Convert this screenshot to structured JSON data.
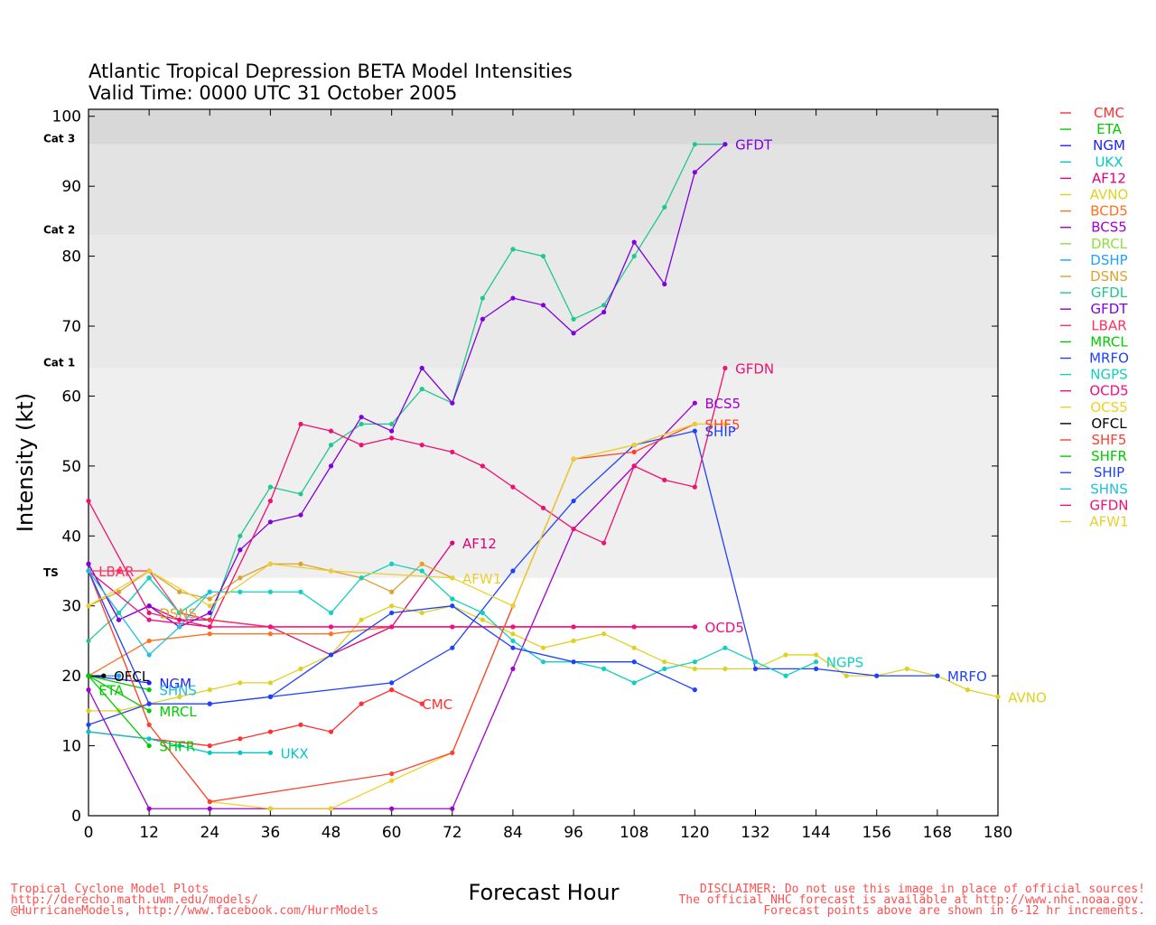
{
  "chart_data": {
    "type": "line",
    "title_line1": "Atlantic Tropical Depression BETA Model Intensities",
    "title_line2": "Valid Time: 0000 UTC 31 October 2005",
    "xlabel": "Forecast Hour",
    "ylabel": "Intensity (kt)",
    "xlim": [
      0,
      180
    ],
    "ylim": [
      0,
      101
    ],
    "xticks": [
      0,
      12,
      24,
      36,
      48,
      60,
      72,
      84,
      96,
      108,
      120,
      132,
      144,
      156,
      168,
      180
    ],
    "yticks": [
      0,
      10,
      20,
      30,
      40,
      50,
      60,
      70,
      80,
      90,
      100
    ],
    "categories_bands": [
      {
        "label": "TS",
        "from": 34,
        "to": 64,
        "color": "#efefef"
      },
      {
        "label": "Cat 1",
        "from": 64,
        "to": 83,
        "color": "#e9e9e9"
      },
      {
        "label": "Cat 2",
        "from": 83,
        "to": 96,
        "color": "#e3e3e3"
      },
      {
        "label": "Cat 3",
        "from": 96,
        "to": 101,
        "color": "#d8d8d8"
      }
    ],
    "series": [
      {
        "name": "CMC",
        "color": "#ff3030",
        "label": "CMC",
        "x": [
          0,
          24,
          30,
          36,
          42,
          48,
          54,
          60,
          66
        ],
        "y": [
          12,
          10,
          11,
          12,
          13,
          12,
          16,
          18,
          16
        ]
      },
      {
        "name": "ETA",
        "color": "#00cc00",
        "label": "ETA",
        "x": [
          0,
          12
        ],
        "y": [
          20,
          18
        ]
      },
      {
        "name": "NGM",
        "color": "#2020ff",
        "label": "NGM",
        "x": [
          0,
          12
        ],
        "y": [
          20,
          19
        ]
      },
      {
        "name": "UKX",
        "color": "#00c8c8",
        "label": "UKX",
        "x": [
          0,
          12,
          18,
          24,
          30,
          36
        ],
        "y": [
          12,
          11,
          10,
          9,
          9,
          9
        ]
      },
      {
        "name": "AF12",
        "color": "#e0007a",
        "label": "AF12",
        "x": [
          0,
          6,
          12,
          18,
          24,
          36,
          48,
          60,
          72
        ],
        "y": [
          36,
          28,
          30,
          28,
          28,
          27,
          23,
          27,
          39
        ]
      },
      {
        "name": "AVNO",
        "color": "#e0d020",
        "label": "AVNO",
        "x": [
          0,
          6,
          12,
          18,
          24,
          30,
          36,
          42,
          48,
          54,
          60,
          66,
          72,
          78,
          84,
          90,
          96,
          102,
          108,
          114,
          120,
          126,
          132,
          138,
          144,
          150,
          156,
          162,
          168,
          174,
          180
        ],
        "y": [
          15,
          15,
          16,
          17,
          18,
          19,
          19,
          21,
          23,
          28,
          30,
          29,
          30,
          28,
          26,
          24,
          25,
          26,
          24,
          22,
          21,
          21,
          21,
          23,
          23,
          20,
          20,
          21,
          20,
          18,
          17
        ]
      },
      {
        "name": "BCD5",
        "color": "#ff7020",
        "label": "",
        "x": [
          0,
          12,
          24,
          36,
          48,
          60,
          72,
          84,
          96,
          108,
          120
        ],
        "y": [
          20,
          25,
          26,
          26,
          26,
          27,
          27,
          27,
          27,
          27,
          27
        ]
      },
      {
        "name": "BCS5",
        "color": "#a000d0",
        "label": "BCS5",
        "x": [
          0,
          12,
          24,
          36,
          48,
          60,
          72,
          84,
          96,
          108,
          120
        ],
        "y": [
          18,
          1,
          1,
          1,
          1,
          1,
          1,
          21,
          41,
          50,
          59
        ]
      },
      {
        "name": "DRCL",
        "color": "#90e040",
        "label": "",
        "x": [
          0,
          6
        ],
        "y": [
          20,
          20
        ]
      },
      {
        "name": "DSHP",
        "color": "#20a0ff",
        "label": "",
        "x": [
          0,
          6
        ],
        "y": [
          20,
          20
        ]
      },
      {
        "name": "DSNS",
        "color": "#e0a030",
        "label": "DSNS",
        "x": [
          0,
          6,
          12,
          18,
          24,
          30,
          36,
          42,
          48,
          54,
          60,
          66,
          72
        ],
        "y": [
          30,
          32,
          35,
          32,
          31,
          34,
          36,
          36,
          35,
          34,
          32,
          36,
          34
        ]
      },
      {
        "name": "GFDL",
        "color": "#20c890",
        "label": "",
        "x": [
          0,
          6,
          12,
          18,
          24,
          30,
          36,
          42,
          48,
          54,
          60,
          66,
          72,
          78,
          84,
          90,
          96,
          102,
          108,
          114,
          120,
          126
        ],
        "y": [
          25,
          29,
          34,
          29,
          28,
          40,
          47,
          46,
          53,
          56,
          56,
          61,
          59,
          74,
          81,
          80,
          71,
          73,
          80,
          87,
          96,
          96
        ]
      },
      {
        "name": "GFDT",
        "color": "#8000e0",
        "label": "GFDT",
        "x": [
          0,
          6,
          12,
          18,
          24,
          30,
          36,
          42,
          48,
          54,
          60,
          66,
          72,
          78,
          84,
          90,
          96,
          102,
          108,
          114,
          120,
          126
        ],
        "y": [
          36,
          28,
          30,
          27,
          29,
          38,
          42,
          43,
          50,
          57,
          55,
          64,
          59,
          71,
          74,
          73,
          69,
          72,
          82,
          76,
          92,
          96
        ]
      },
      {
        "name": "LBAR",
        "color": "#ff3060",
        "label": "LBAR",
        "x": [
          0,
          6,
          12,
          18,
          24,
          36,
          48,
          60,
          72,
          84,
          96,
          108,
          120
        ],
        "y": [
          35,
          35,
          35,
          29,
          28,
          27,
          27,
          27,
          27,
          27,
          27,
          27,
          27
        ]
      },
      {
        "name": "MRCL",
        "color": "#00cc00",
        "label": "MRCL",
        "x": [
          0,
          12
        ],
        "y": [
          20,
          15
        ]
      },
      {
        "name": "MRFO",
        "color": "#2040ff",
        "label": "MRFO",
        "x": [
          0,
          12,
          24,
          36,
          60,
          72,
          84,
          96,
          108,
          120,
          132,
          144,
          156,
          168
        ],
        "y": [
          13,
          16,
          16,
          17,
          19,
          24,
          35,
          45,
          53,
          55,
          21,
          21,
          20,
          20
        ]
      },
      {
        "name": "NGPS",
        "color": "#10d0c0",
        "label": "NGPS",
        "x": [
          0,
          6,
          12,
          18,
          24,
          30,
          36,
          42,
          48,
          54,
          60,
          66,
          72,
          78,
          84,
          90,
          96,
          102,
          108,
          114,
          120,
          126,
          132,
          138,
          144
        ],
        "y": [
          35,
          29,
          34,
          29,
          32,
          32,
          32,
          32,
          29,
          34,
          36,
          35,
          31,
          29,
          25,
          22,
          22,
          21,
          19,
          21,
          22,
          24,
          22,
          20,
          22
        ]
      },
      {
        "name": "OCD5",
        "color": "#f01080",
        "label": "OCD5",
        "x": [
          0,
          12,
          24,
          36,
          48,
          60,
          72,
          84,
          96,
          108,
          120
        ],
        "y": [
          35,
          28,
          27,
          27,
          27,
          27,
          27,
          27,
          27,
          27,
          27
        ]
      },
      {
        "name": "OCS5",
        "color": "#f0d020",
        "label": "",
        "x": [
          0,
          12,
          24,
          36,
          48,
          60,
          72,
          84,
          96,
          108,
          120
        ],
        "y": [
          35,
          13,
          2,
          1,
          1,
          5,
          9,
          30,
          51,
          53,
          56
        ]
      },
      {
        "name": "OFCL",
        "color": "#000000",
        "label": "OFCL",
        "x": [
          0,
          3
        ],
        "y": [
          20,
          20
        ]
      },
      {
        "name": "SHF5",
        "color": "#ff4030",
        "label": "SHF5",
        "x": [
          0,
          12,
          24,
          60,
          72,
          84,
          96,
          108,
          120
        ],
        "y": [
          35,
          13,
          2,
          6,
          9,
          30,
          51,
          52,
          56
        ]
      },
      {
        "name": "SHFR",
        "color": "#00cc00",
        "label": "SHFR",
        "x": [
          0,
          12
        ],
        "y": [
          20,
          10
        ]
      },
      {
        "name": "SHIP",
        "color": "#2040ff",
        "label": "SHIP",
        "x": [
          0,
          12,
          24,
          36,
          48,
          60,
          72,
          84,
          96,
          108,
          120
        ],
        "y": [
          35,
          16,
          16,
          17,
          23,
          29,
          30,
          24,
          22,
          22,
          18
        ]
      },
      {
        "name": "SHNS",
        "color": "#20c0e0",
        "label": "SHNS",
        "x": [
          0,
          12,
          18,
          24
        ],
        "y": [
          35,
          23,
          27,
          32
        ]
      },
      {
        "name": "GFDN",
        "color": "#f01070",
        "label": "GFDN",
        "x": [
          0,
          12,
          24,
          36,
          42,
          48,
          54,
          60,
          66,
          72,
          78,
          84,
          90,
          96,
          102,
          108,
          114,
          120,
          126
        ],
        "y": [
          45,
          29,
          27,
          45,
          56,
          55,
          53,
          54,
          53,
          52,
          50,
          47,
          44,
          41,
          39,
          50,
          48,
          47,
          64
        ]
      },
      {
        "name": "AFW1",
        "color": "#e8d030",
        "label": "AFW1",
        "x": [
          0,
          12,
          24,
          36,
          48,
          72,
          84,
          96,
          108,
          120,
          126
        ],
        "y": [
          30,
          35,
          30,
          36,
          35,
          34,
          30,
          51,
          53,
          56,
          56
        ]
      }
    ],
    "end_labels": [
      {
        "text": "CMC",
        "x": 66,
        "y": 16,
        "color": "#ff3030"
      },
      {
        "text": "ETA",
        "x": 2,
        "y": 18,
        "color": "#00cc00"
      },
      {
        "text": "NGM",
        "x": 14,
        "y": 19,
        "color": "#2020ff"
      },
      {
        "text": "UKX",
        "x": 38,
        "y": 9,
        "color": "#00c8c8"
      },
      {
        "text": "AF12",
        "x": 74,
        "y": 39,
        "color": "#e0007a"
      },
      {
        "text": "AVNO",
        "x": 182,
        "y": 17,
        "color": "#e0d020"
      },
      {
        "text": "BCS5",
        "x": 122,
        "y": 59,
        "color": "#a000d0"
      },
      {
        "text": "DSNS",
        "x": 14,
        "y": 29,
        "color": "#e0a030"
      },
      {
        "text": "GFDT",
        "x": 128,
        "y": 96,
        "color": "#8000e0"
      },
      {
        "text": "LBAR",
        "x": 2,
        "y": 35,
        "color": "#ff3060"
      },
      {
        "text": "MRCL",
        "x": 14,
        "y": 15,
        "color": "#00cc00"
      },
      {
        "text": "MRFO",
        "x": 170,
        "y": 20,
        "color": "#2040ff"
      },
      {
        "text": "NGPS",
        "x": 146,
        "y": 22,
        "color": "#10d0c0"
      },
      {
        "text": "OCD5",
        "x": 122,
        "y": 27,
        "color": "#f01080"
      },
      {
        "text": "OFCL",
        "x": 5,
        "y": 20,
        "color": "#000000"
      },
      {
        "text": "SHF5",
        "x": 122,
        "y": 56,
        "color": "#ff4030"
      },
      {
        "text": "SHFR",
        "x": 14,
        "y": 10,
        "color": "#00cc00"
      },
      {
        "text": "SHIP",
        "x": 122,
        "y": 55,
        "color": "#2040ff"
      },
      {
        "text": "SHNS",
        "x": 14,
        "y": 18,
        "color": "#20c0e0"
      },
      {
        "text": "GFDN",
        "x": 128,
        "y": 64,
        "color": "#f01070"
      },
      {
        "text": "AFW1",
        "x": 74,
        "y": 34,
        "color": "#e8d030"
      }
    ],
    "legend": [
      {
        "name": "CMC",
        "color": "#ff3030"
      },
      {
        "name": "ETA",
        "color": "#00cc00"
      },
      {
        "name": "NGM",
        "color": "#2020ff"
      },
      {
        "name": "UKX",
        "color": "#00c8c8"
      },
      {
        "name": "AF12",
        "color": "#e0007a"
      },
      {
        "name": "AVNO",
        "color": "#e0d020"
      },
      {
        "name": "BCD5",
        "color": "#ff7020"
      },
      {
        "name": "BCS5",
        "color": "#a000d0"
      },
      {
        "name": "DRCL",
        "color": "#90e040"
      },
      {
        "name": "DSHP",
        "color": "#20a0ff"
      },
      {
        "name": "DSNS",
        "color": "#e0a030"
      },
      {
        "name": "GFDL",
        "color": "#20c890"
      },
      {
        "name": "GFDT",
        "color": "#8000e0"
      },
      {
        "name": "LBAR",
        "color": "#ff3060"
      },
      {
        "name": "MRCL",
        "color": "#00cc00"
      },
      {
        "name": "MRFO",
        "color": "#2040ff"
      },
      {
        "name": "NGPS",
        "color": "#10d0c0"
      },
      {
        "name": "OCD5",
        "color": "#f01080"
      },
      {
        "name": "OCS5",
        "color": "#f0d020"
      },
      {
        "name": "OFCL",
        "color": "#000000"
      },
      {
        "name": "SHF5",
        "color": "#ff4030"
      },
      {
        "name": "SHFR",
        "color": "#00cc00"
      },
      {
        "name": "SHIP",
        "color": "#2040ff"
      },
      {
        "name": "SHNS",
        "color": "#20c0e0"
      },
      {
        "name": "GFDN",
        "color": "#f01070"
      },
      {
        "name": "AFW1",
        "color": "#e8d030"
      }
    ],
    "legend_position": "right",
    "grid": false
  },
  "footer": {
    "left_line1": "Tropical Cyclone Model Plots",
    "left_line2": "http://derecho.math.uwm.edu/models/",
    "left_line3": "@HurricaneModels, http://www.facebook.com/HurrModels",
    "right_line1": "DISCLAIMER: Do not use this image in place of official sources!",
    "right_line2": "The official NHC forecast is available at http://www.nhc.noaa.gov.",
    "right_line3": "Forecast points above are shown in 6-12 hr increments."
  }
}
